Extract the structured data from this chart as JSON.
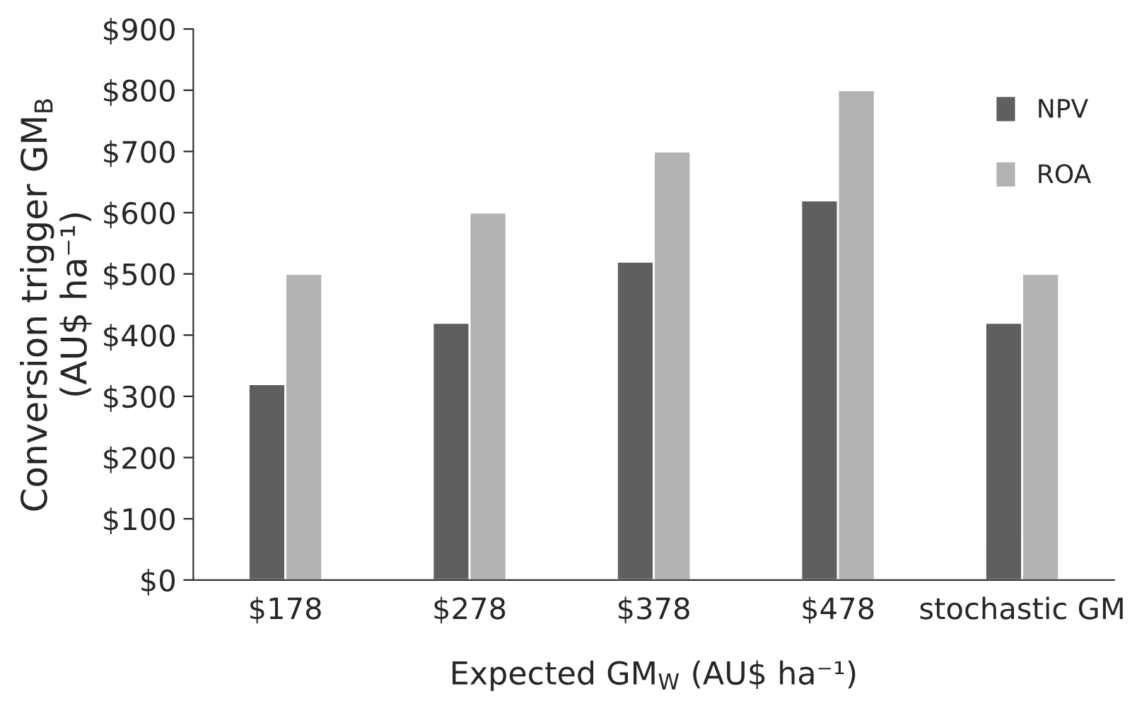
{
  "chart_data": {
    "type": "bar",
    "xlabel": "Expected GM$_{W}$ (AU$ ha⁻¹)",
    "ylabel": "Conversion trigger GM$_{B}$\n(AU$ ha⁻¹)",
    "categories": [
      "$178",
      "$278",
      "$378",
      "$478",
      "stochastic GM"
    ],
    "series": [
      {
        "name": "NPV",
        "color": "#5f5f5f",
        "values": [
          320,
          420,
          520,
          620,
          420
        ]
      },
      {
        "name": "ROA",
        "color": "#b3b3b3",
        "values": [
          500,
          600,
          700,
          800,
          500
        ]
      }
    ],
    "ylim": [
      0,
      900
    ],
    "yticks": [
      {
        "value": 0,
        "label": "$0"
      },
      {
        "value": 100,
        "label": "$100"
      },
      {
        "value": 200,
        "label": "$200"
      },
      {
        "value": 300,
        "label": "$300"
      },
      {
        "value": 400,
        "label": "$400"
      },
      {
        "value": 500,
        "label": "$500"
      },
      {
        "value": 600,
        "label": "$600"
      },
      {
        "value": 700,
        "label": "$700"
      },
      {
        "value": 800,
        "label": "$800"
      },
      {
        "value": 900,
        "label": "$900"
      }
    ],
    "grid": false,
    "legend": "top right"
  }
}
